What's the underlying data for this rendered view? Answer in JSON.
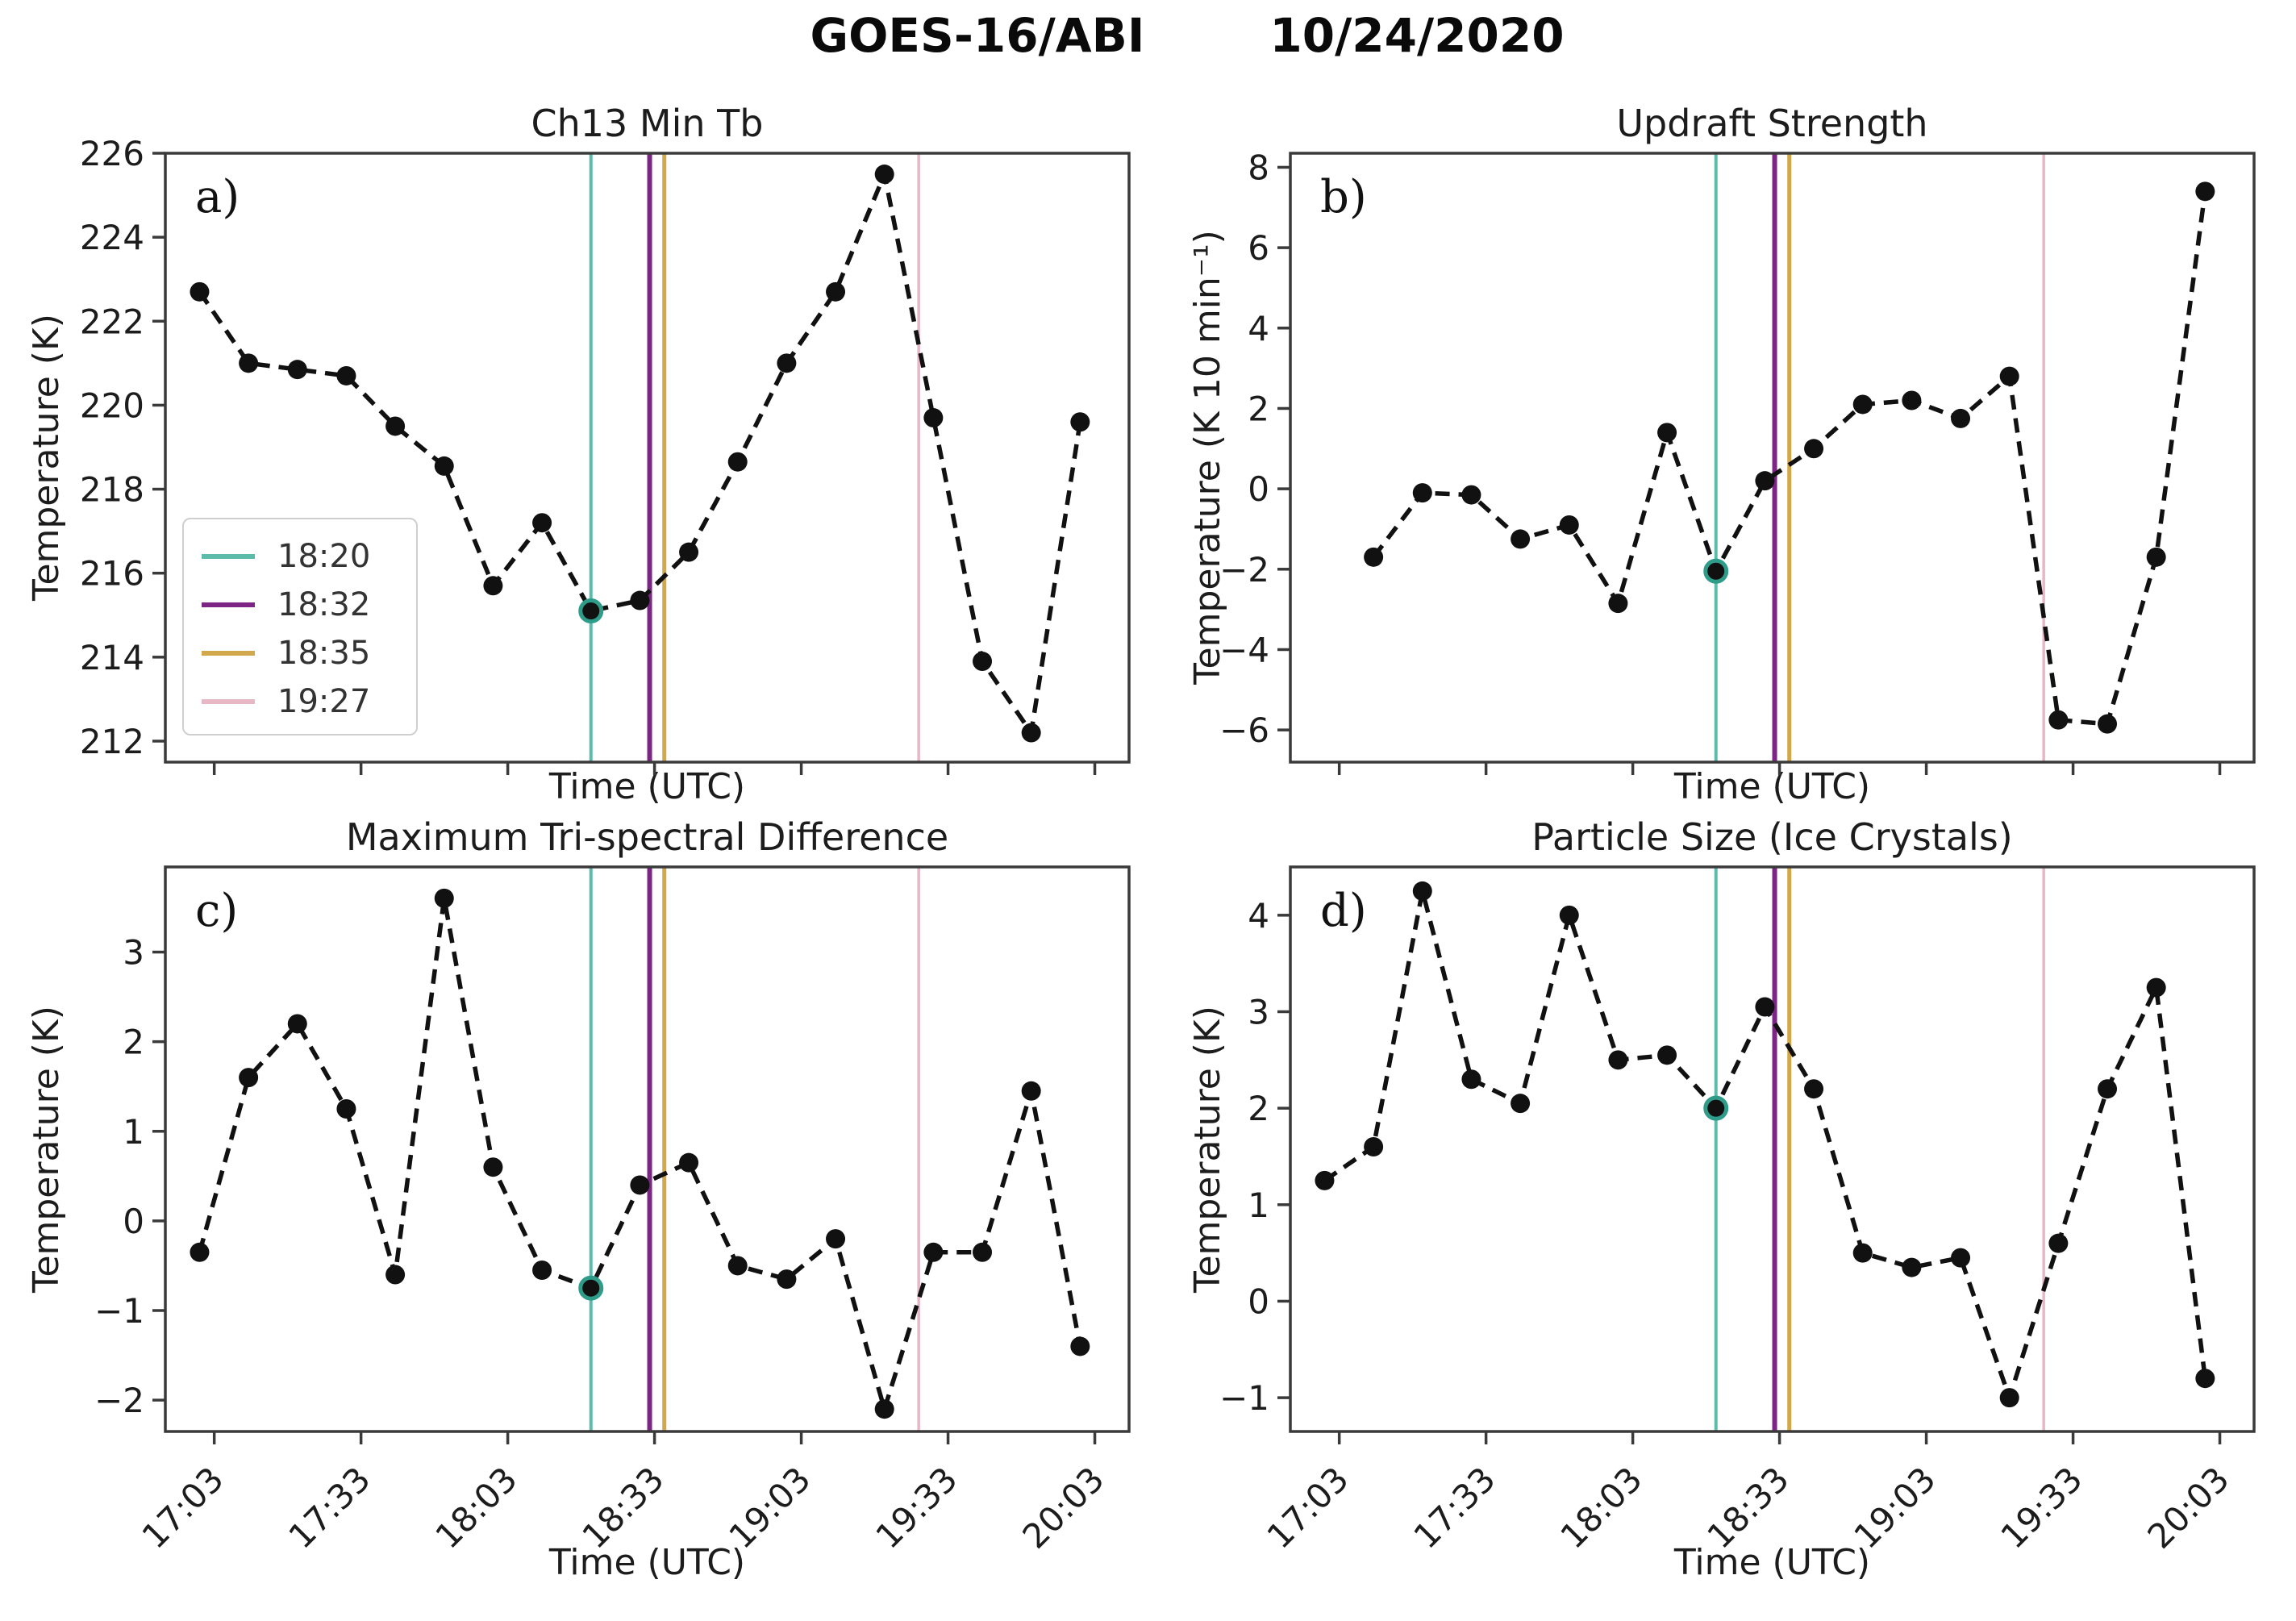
{
  "figure": {
    "title_left": "GOES-16/ABI",
    "title_right": "10/24/2020",
    "satellite": "GOES-16/ABI",
    "date": "10/24/2020",
    "xlabel": "Time (UTC)",
    "x_tick_labels": [
      "17:03",
      "17:33",
      "18:03",
      "18:33",
      "19:03",
      "19:33",
      "20:03"
    ],
    "x_tick_minutes": [
      3,
      33,
      63,
      93,
      123,
      153,
      183
    ],
    "highlight_ring_color": "#2f9c8a",
    "line_color": "#111111",
    "spine_color": "#3a3a3a"
  },
  "legend": {
    "items": [
      {
        "label": "18:20",
        "minute": 80,
        "color": "#5cbcab",
        "line_width": 4
      },
      {
        "label": "18:32",
        "minute": 92,
        "color": "#7c2584",
        "line_width": 6
      },
      {
        "label": "18:35",
        "minute": 95,
        "color": "#d2a84c",
        "line_width": 5
      },
      {
        "label": "19:27",
        "minute": 147,
        "color": "#e8b7c6",
        "line_width": 3.5
      }
    ]
  },
  "chart_data": [
    {
      "id": "a",
      "type": "line",
      "title": "Ch13 Min Tb",
      "panel_label": "a)",
      "xlabel": "Time (UTC)",
      "ylabel": "Temperature (K)",
      "marker": "black filled circles with dashed black line",
      "x_times": [
        "17:00",
        "17:10",
        "17:20",
        "17:30",
        "17:40",
        "17:50",
        "18:00",
        "18:10",
        "18:20",
        "18:30",
        "18:40",
        "18:50",
        "19:00",
        "19:10",
        "19:20",
        "19:30",
        "19:40",
        "19:50",
        "20:00"
      ],
      "x_minutes": [
        0,
        10,
        20,
        30,
        40,
        50,
        60,
        70,
        80,
        90,
        100,
        110,
        120,
        130,
        140,
        150,
        160,
        170,
        180
      ],
      "values": [
        222.7,
        221.0,
        220.85,
        220.7,
        219.5,
        218.55,
        215.7,
        217.2,
        215.1,
        215.35,
        216.5,
        218.65,
        221.0,
        222.7,
        225.5,
        219.7,
        213.9,
        212.2,
        219.6
      ],
      "ylim": [
        211.5,
        226.0
      ],
      "yticks": [
        212,
        214,
        216,
        218,
        220,
        222,
        224,
        226
      ],
      "xlim_minutes": [
        -7,
        190
      ],
      "show_x_tick_labels": false,
      "highlight_minute": 80,
      "has_legend": true
    },
    {
      "id": "b",
      "type": "line",
      "title": "Updraft Strength",
      "panel_label": "b)",
      "xlabel": "Time (UTC)",
      "ylabel": "Temperature (K 10 min⁻¹)",
      "marker": "black filled circles with dashed black line",
      "x_times": [
        "17:10",
        "17:20",
        "17:30",
        "17:40",
        "17:50",
        "18:00",
        "18:10",
        "18:20",
        "18:30",
        "18:40",
        "18:50",
        "19:00",
        "19:10",
        "19:20",
        "19:30",
        "19:40",
        "19:50",
        "20:00"
      ],
      "x_minutes": [
        10,
        20,
        30,
        40,
        50,
        60,
        70,
        80,
        90,
        100,
        110,
        120,
        130,
        140,
        150,
        160,
        170,
        180
      ],
      "values": [
        -1.7,
        -0.1,
        -0.15,
        -1.25,
        -0.9,
        -2.85,
        1.4,
        -2.05,
        0.2,
        1.0,
        2.1,
        2.2,
        1.75,
        2.8,
        -5.75,
        -5.85,
        -1.7,
        7.4
      ],
      "ylim": [
        -6.8,
        8.35
      ],
      "yticks": [
        -6,
        -4,
        -2,
        0,
        2,
        4,
        6,
        8
      ],
      "xlim_minutes": [
        -7,
        190
      ],
      "show_x_tick_labels": false,
      "highlight_minute": 80,
      "has_legend": false
    },
    {
      "id": "c",
      "type": "line",
      "title": "Maximum Tri-spectral Difference",
      "panel_label": "c)",
      "xlabel": "Time (UTC)",
      "ylabel": "Temperature (K)",
      "marker": "black filled circles with dashed black line",
      "x_times": [
        "17:00",
        "17:10",
        "17:20",
        "17:30",
        "17:40",
        "17:50",
        "18:00",
        "18:10",
        "18:20",
        "18:30",
        "18:40",
        "18:50",
        "19:00",
        "19:10",
        "19:20",
        "19:30",
        "19:40",
        "19:50",
        "20:00"
      ],
      "x_minutes": [
        0,
        10,
        20,
        30,
        40,
        50,
        60,
        70,
        80,
        90,
        100,
        110,
        120,
        130,
        140,
        150,
        160,
        170,
        180
      ],
      "values": [
        -0.35,
        1.6,
        2.2,
        1.25,
        -0.6,
        3.6,
        0.6,
        -0.55,
        -0.75,
        0.4,
        0.65,
        -0.5,
        -0.65,
        -0.2,
        -2.1,
        -0.35,
        -0.35,
        1.45,
        -1.4
      ],
      "ylim": [
        -2.35,
        3.95
      ],
      "yticks": [
        -2,
        -1,
        0,
        1,
        2,
        3
      ],
      "xlim_minutes": [
        -7,
        190
      ],
      "show_x_tick_labels": true,
      "highlight_minute": 80,
      "has_legend": false
    },
    {
      "id": "d",
      "type": "line",
      "title": "Particle Size (Ice Crystals)",
      "panel_label": "d)",
      "xlabel": "Time (UTC)",
      "ylabel": "Temperature (K)",
      "marker": "black filled circles with dashed black line",
      "x_times": [
        "17:00",
        "17:10",
        "17:20",
        "17:30",
        "17:40",
        "17:50",
        "18:00",
        "18:10",
        "18:20",
        "18:30",
        "18:40",
        "18:50",
        "19:00",
        "19:10",
        "19:20",
        "19:30",
        "19:40",
        "19:50",
        "20:00"
      ],
      "x_minutes": [
        0,
        10,
        20,
        30,
        40,
        50,
        60,
        70,
        80,
        90,
        100,
        110,
        120,
        130,
        140,
        150,
        160,
        170,
        180
      ],
      "values": [
        1.25,
        1.6,
        4.25,
        2.3,
        2.05,
        4.0,
        2.5,
        2.55,
        2.0,
        3.05,
        2.2,
        0.5,
        0.35,
        0.45,
        -1.0,
        0.6,
        2.2,
        3.25,
        -0.8
      ],
      "ylim": [
        -1.35,
        4.5
      ],
      "yticks": [
        -1,
        0,
        1,
        2,
        3,
        4
      ],
      "xlim_minutes": [
        -7,
        190
      ],
      "show_x_tick_labels": true,
      "highlight_minute": 80,
      "has_legend": false
    }
  ]
}
